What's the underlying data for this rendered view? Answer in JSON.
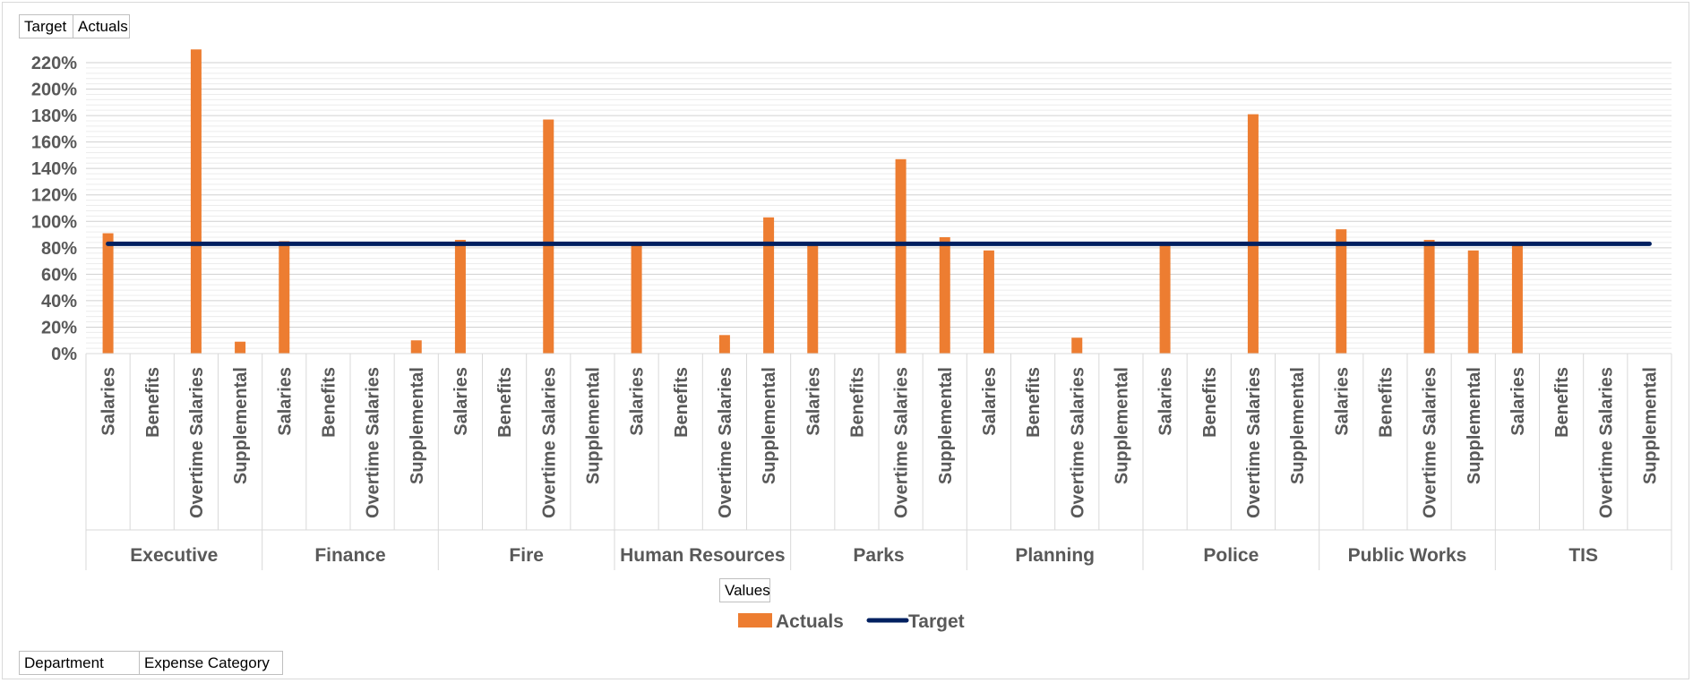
{
  "field_buttons": {
    "filters": [
      "Target",
      "Actuals"
    ],
    "values": "Values",
    "axis": [
      "Department",
      "Expense Category"
    ]
  },
  "legend": {
    "actuals": "Actuals",
    "target": "Target"
  },
  "colors": {
    "actuals": "#ED7D31",
    "target": "#002060",
    "axis_text": "#595959",
    "grid": "#d9d9d9"
  },
  "chart_data": {
    "type": "bar",
    "y_axis": {
      "min": 0,
      "max": 2.2,
      "major_step": 0.2,
      "tick_labels": [
        "0%",
        "20%",
        "40%",
        "60%",
        "80%",
        "100%",
        "120%",
        "140%",
        "160%",
        "180%",
        "200%",
        "220%"
      ]
    },
    "departments": [
      "Executive",
      "Finance",
      "Fire",
      "Human Resources",
      "Parks",
      "Planning",
      "Police",
      "Public Works",
      "TIS"
    ],
    "expense_categories": [
      "Salaries",
      "Benefits",
      "Overtime Salaries",
      "Supplemental"
    ],
    "series": [
      {
        "name": "Actuals",
        "kind": "bar",
        "values": [
          [
            0.91,
            0,
            2.3,
            0.09
          ],
          [
            0.85,
            0,
            0,
            0.1
          ],
          [
            0.86,
            0,
            1.77,
            0
          ],
          [
            0.84,
            0,
            0.14,
            1.03
          ],
          [
            0.84,
            0,
            1.47,
            0.88
          ],
          [
            0.78,
            0,
            0.12,
            0
          ],
          [
            0.84,
            0,
            1.81,
            0
          ],
          [
            0.94,
            0,
            0.86,
            0.78
          ],
          [
            0.84,
            0,
            0,
            0
          ]
        ]
      },
      {
        "name": "Target",
        "kind": "line",
        "value": 0.83
      }
    ],
    "legend_position": "bottom",
    "grid": true
  }
}
